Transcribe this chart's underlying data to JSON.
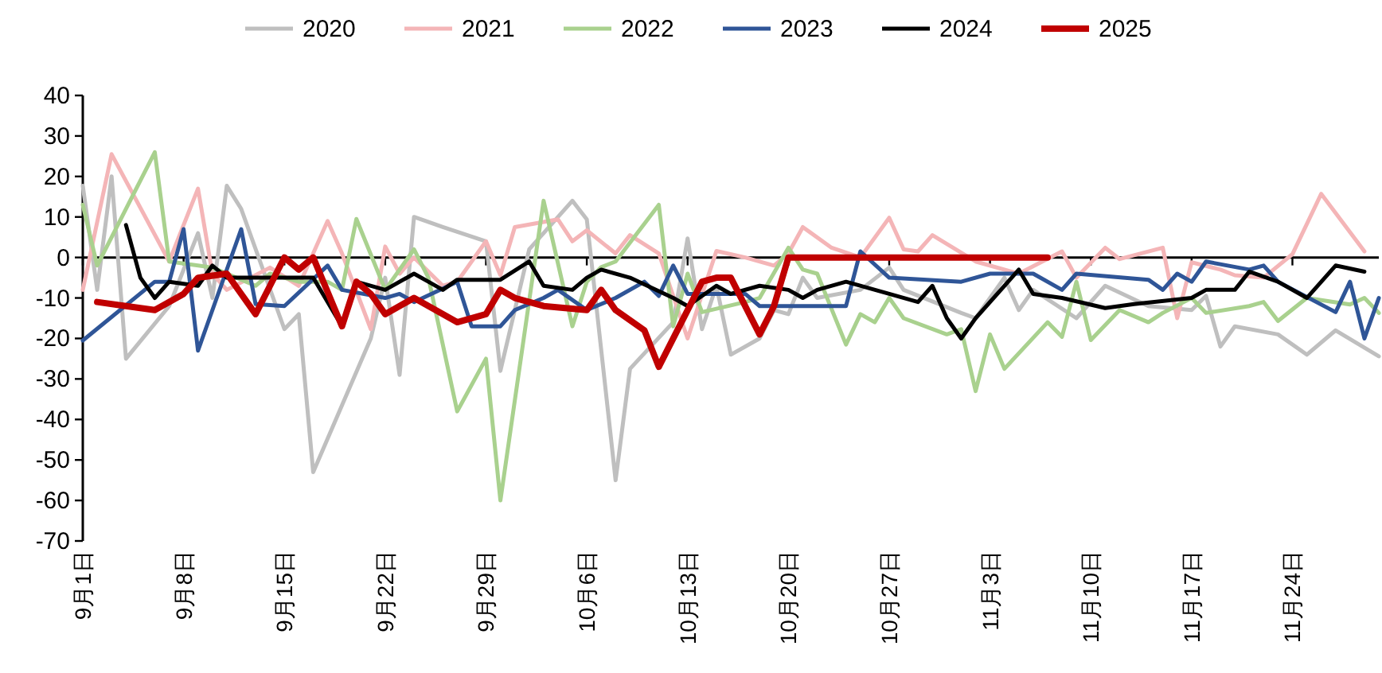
{
  "chart_data": {
    "type": "line",
    "legend": "top",
    "marker": "none",
    "line_style": "solid",
    "xlim": [
      "--09-01",
      "--11-30"
    ],
    "xticks": [
      {
        "value": "--09-01",
        "label": "9月1日"
      },
      {
        "value": "--09-08",
        "label": "9月8日"
      },
      {
        "value": "--09-15",
        "label": "9月15日"
      },
      {
        "value": "--09-22",
        "label": "9月22日"
      },
      {
        "value": "--09-29",
        "label": "9月29日"
      },
      {
        "value": "--10-06",
        "label": "10月6日"
      },
      {
        "value": "--10-13",
        "label": "10月13日"
      },
      {
        "value": "--10-20",
        "label": "10月20日"
      },
      {
        "value": "--10-27",
        "label": "10月27日"
      },
      {
        "value": "--11-03",
        "label": "11月3日"
      },
      {
        "value": "--11-10",
        "label": "11月10日"
      },
      {
        "value": "--11-17",
        "label": "11月17日"
      },
      {
        "value": "--11-24",
        "label": "11月24日"
      }
    ],
    "ylim": [
      -70,
      40
    ],
    "yticks": [
      -70,
      -60,
      -50,
      -40,
      -30,
      -20,
      -10,
      0,
      10,
      20,
      30,
      40
    ],
    "series": [
      {
        "name": "2020",
        "color": "#bfbfbf",
        "x": [
          "--09-01",
          "--09-02",
          "--09-03",
          "--09-04",
          "--09-07",
          "--09-09",
          "--09-10",
          "--09-11",
          "--09-12",
          "--09-15",
          "--09-16",
          "--09-17",
          "--09-21",
          "--09-22",
          "--09-23",
          "--09-24",
          "--09-26",
          "--09-29",
          "--09-30",
          "--10-02",
          "--10-05",
          "--10-06",
          "--10-08",
          "--10-09",
          "--10-12",
          "--10-13",
          "--10-14",
          "--10-15",
          "--10-16",
          "--10-18",
          "--10-19",
          "--10-20",
          "--10-21",
          "--10-22",
          "--10-25",
          "--10-27",
          "--10-28",
          "--11-01",
          "--11-02",
          "--11-04",
          "--11-05",
          "--11-06",
          "--11-09",
          "--11-11",
          "--11-14",
          "--11-17",
          "--11-18",
          "--11-19",
          "--11-20",
          "--11-23",
          "--11-25",
          "--11-27",
          "--11-30"
        ],
        "values": [
          17.7,
          -8,
          20,
          -25,
          -12,
          6,
          -10,
          17.7,
          12,
          -17.7,
          -14,
          -53,
          -20,
          -5,
          -29,
          10,
          7.5,
          4,
          -28,
          2,
          14,
          9.4,
          -55,
          -27.5,
          -16,
          4.7,
          -17.7,
          -7,
          -24,
          -20,
          -13,
          -14,
          -5,
          -10,
          -8,
          -2.5,
          -8,
          -13.7,
          -15,
          -5,
          -13,
          -8,
          -15,
          -7,
          -12,
          -13,
          -9.5,
          -22,
          -17,
          -19,
          -24,
          -18,
          -24.4
        ]
      },
      {
        "name": "2021",
        "color": "#f4b5b7",
        "x": [
          "--09-01",
          "--09-03",
          "--09-07",
          "--09-09",
          "--09-10",
          "--09-11",
          "--09-14",
          "--09-16",
          "--09-18",
          "--09-19",
          "--09-21",
          "--09-22",
          "--09-23",
          "--09-24",
          "--09-26",
          "--09-27",
          "--09-29",
          "--09-30",
          "--10-01",
          "--10-04",
          "--10-05",
          "--10-06",
          "--10-08",
          "--10-09",
          "--10-11",
          "--10-13",
          "--10-15",
          "--10-17",
          "--10-19",
          "--10-20",
          "--10-21",
          "--10-23",
          "--10-25",
          "--10-27",
          "--10-28",
          "--10-29",
          "--10-30",
          "--11-02",
          "--11-05",
          "--11-08",
          "--11-09",
          "--11-11",
          "--11-12",
          "--11-15",
          "--11-16",
          "--11-17",
          "--11-19",
          "--11-20",
          "--11-22",
          "--11-24",
          "--11-26",
          "--11-29"
        ],
        "values": [
          -8,
          25.5,
          -1,
          17,
          -4,
          -8,
          -2.5,
          -7,
          9,
          1,
          -17.7,
          2.7,
          -4,
          0,
          -7,
          -6,
          4,
          -4.4,
          7.5,
          9.4,
          4,
          6.7,
          1,
          5.5,
          1,
          -20,
          1.6,
          0,
          -2,
          1,
          7.5,
          2.4,
          0,
          9.8,
          2,
          1.5,
          5.5,
          -1,
          -4,
          1.5,
          -5,
          2.4,
          -0.4,
          2.4,
          -15,
          -1.2,
          -3,
          -4.4,
          -5,
          0.8,
          15.7,
          1.5
        ]
      },
      {
        "name": "2022",
        "color": "#a9d18e",
        "x": [
          "--09-01",
          "--09-02",
          "--09-06",
          "--09-07",
          "--09-10",
          "--09-13",
          "--09-14",
          "--09-16",
          "--09-18",
          "--09-19",
          "--09-20",
          "--09-22",
          "--09-24",
          "--09-25",
          "--09-27",
          "--09-29",
          "--09-30",
          "--10-03",
          "--10-05",
          "--10-06",
          "--10-07",
          "--10-08",
          "--10-11",
          "--10-12",
          "--10-13",
          "--10-14",
          "--10-17",
          "--10-18",
          "--10-20",
          "--10-21",
          "--10-22",
          "--10-24",
          "--10-25",
          "--10-26",
          "--10-27",
          "--10-28",
          "--10-31",
          "--11-01",
          "--11-02",
          "--11-03",
          "--11-04",
          "--11-07",
          "--11-08",
          "--11-09",
          "--11-10",
          "--11-12",
          "--11-14",
          "--11-15",
          "--11-17",
          "--11-18",
          "--11-21",
          "--11-22",
          "--11-23",
          "--11-25",
          "--11-28",
          "--11-29",
          "--11-30"
        ],
        "values": [
          13,
          -2,
          26,
          -1,
          -2.5,
          -7,
          -4,
          -6,
          -6,
          -8,
          9.5,
          -8,
          2,
          -5,
          -38,
          -25,
          -60,
          14,
          -17,
          -6,
          -2.4,
          -1,
          13,
          -17,
          -4,
          -13.5,
          -11,
          -10,
          2.4,
          -3,
          -4,
          -21.5,
          -14,
          -16,
          -10,
          -15,
          -19,
          -17.7,
          -33,
          -19,
          -27.5,
          -16,
          -19.6,
          -6,
          -20.4,
          -13,
          -16,
          -13.7,
          -10,
          -13.7,
          -12,
          -11,
          -15.7,
          -10,
          -11.6,
          -10,
          -13.7
        ]
      },
      {
        "name": "2023",
        "color": "#2f5597",
        "x": [
          "--09-01",
          "--09-06",
          "--09-07",
          "--09-08",
          "--09-09",
          "--09-12",
          "--09-13",
          "--09-15",
          "--09-18",
          "--09-19",
          "--09-22",
          "--09-23",
          "--09-24",
          "--09-27",
          "--09-28",
          "--09-30",
          "--10-01",
          "--10-03",
          "--10-04",
          "--10-06",
          "--10-08",
          "--10-10",
          "--10-11",
          "--10-12",
          "--10-13",
          "--10-17",
          "--10-18",
          "--10-21",
          "--10-24",
          "--10-25",
          "--10-27",
          "--11-01",
          "--11-03",
          "--11-06",
          "--11-08",
          "--11-09",
          "--11-14",
          "--11-15",
          "--11-16",
          "--11-17",
          "--11-18",
          "--11-21",
          "--11-22",
          "--11-23",
          "--11-27",
          "--11-28",
          "--11-29",
          "--11-30"
        ],
        "values": [
          -20.5,
          -6,
          -6,
          7,
          -23,
          7,
          -11.5,
          -12,
          -2,
          -8,
          -10,
          -9,
          -11,
          -6,
          -17,
          -17,
          -13,
          -10,
          -8,
          -13,
          -10,
          -6,
          -9.5,
          -2,
          -9,
          -9,
          -12,
          -12,
          -12,
          1.5,
          -5,
          -6,
          -4,
          -4,
          -8,
          -4,
          -5.5,
          -8,
          -4,
          -6,
          -1,
          -3,
          -2,
          -6,
          -13.5,
          -6,
          -20,
          -10
        ]
      },
      {
        "name": "2024",
        "color": "#000000",
        "x": [
          "--09-04",
          "--09-05",
          "--09-06",
          "--09-07",
          "--09-09",
          "--09-10",
          "--09-11",
          "--09-13",
          "--09-16",
          "--09-17",
          "--09-19",
          "--09-20",
          "--09-22",
          "--09-24",
          "--09-25",
          "--09-26",
          "--09-27",
          "--09-30",
          "--10-02",
          "--10-03",
          "--10-05",
          "--10-06",
          "--10-07",
          "--10-09",
          "--10-12",
          "--10-13",
          "--10-15",
          "--10-16",
          "--10-18",
          "--10-20",
          "--10-21",
          "--10-22",
          "--10-24",
          "--10-27",
          "--10-29",
          "--10-30",
          "--10-31",
          "--11-01",
          "--11-02",
          "--11-05",
          "--11-06",
          "--11-08",
          "--11-11",
          "--11-13",
          "--11-17",
          "--11-18",
          "--11-20",
          "--11-21",
          "--11-23",
          "--11-25",
          "--11-27",
          "--11-29"
        ],
        "values": [
          8,
          -5,
          -10,
          -6,
          -7,
          -2,
          -5,
          -5,
          -5,
          -5,
          -17,
          -6,
          -8,
          -4,
          -6,
          -8,
          -5.5,
          -5.5,
          -1,
          -7,
          -8,
          -5,
          -3,
          -5,
          -10,
          -12,
          -7,
          -9,
          -7,
          -8,
          -10,
          -8,
          -6,
          -9,
          -11,
          -7,
          -15,
          -20,
          -15,
          -3,
          -9,
          -10,
          -12.5,
          -11.5,
          -10,
          -8,
          -8,
          -3.5,
          -6,
          -10,
          -2,
          -3.5
        ]
      },
      {
        "name": "2025",
        "color": "#c00000",
        "x": [
          "--09-02",
          "--09-04",
          "--09-06",
          "--09-08",
          "--09-09",
          "--09-11",
          "--09-13",
          "--09-14",
          "--09-15",
          "--09-16",
          "--09-17",
          "--09-19",
          "--09-20",
          "--09-21",
          "--09-22",
          "--09-24",
          "--09-27",
          "--09-29",
          "--09-30",
          "--10-01",
          "--10-03",
          "--10-06",
          "--10-07",
          "--10-08",
          "--10-10",
          "--10-11",
          "--10-13",
          "--10-14",
          "--10-15",
          "--10-16",
          "--10-18",
          "--10-19",
          "--10-20",
          "--11-07"
        ],
        "values": [
          -11,
          -12,
          -13,
          -9,
          -5,
          -4,
          -14,
          -7,
          0,
          -3,
          0,
          -17,
          -6,
          -9,
          -14,
          -10,
          -16,
          -14,
          -8,
          -10,
          -12,
          -13,
          -8,
          -13,
          -18,
          -27,
          -13,
          -6,
          -5,
          -5,
          -19,
          -12,
          0,
          0
        ]
      }
    ]
  }
}
